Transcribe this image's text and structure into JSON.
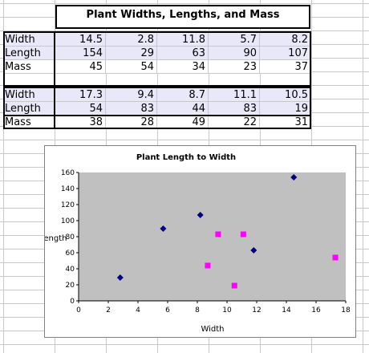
{
  "table": {
    "title": "Plant Widths, Lengths, and Mass",
    "group1": [
      {
        "label": "Width",
        "values": [
          "14.5",
          "2.8",
          "11.8",
          "5.7",
          "8.2"
        ]
      },
      {
        "label": "Length",
        "values": [
          "154",
          "29",
          "63",
          "90",
          "107"
        ]
      },
      {
        "label": "Mass",
        "values": [
          "45",
          "54",
          "34",
          "23",
          "37"
        ]
      }
    ],
    "group2": [
      {
        "label": "Width",
        "values": [
          "17.3",
          "9.4",
          "8.7",
          "11.1",
          "10.5"
        ]
      },
      {
        "label": "Length",
        "values": [
          "54",
          "83",
          "44",
          "83",
          "19"
        ]
      },
      {
        "label": "Mass",
        "values": [
          "38",
          "28",
          "49",
          "22",
          "31"
        ]
      }
    ]
  },
  "chart_data": {
    "type": "scatter",
    "title": "Plant Length to Width",
    "xlabel": "Width",
    "ylabel": "Length",
    "xlim": [
      0,
      18
    ],
    "ylim": [
      0,
      160
    ],
    "xticks": [
      0,
      2,
      4,
      6,
      8,
      10,
      12,
      14,
      16,
      18
    ],
    "yticks": [
      0,
      20,
      40,
      60,
      80,
      100,
      120,
      140,
      160
    ],
    "grid": false,
    "series": [
      {
        "marker": "diamond",
        "color": "#000080",
        "points": [
          [
            14.5,
            154
          ],
          [
            2.8,
            29
          ],
          [
            11.8,
            63
          ],
          [
            5.7,
            90
          ],
          [
            8.2,
            107
          ]
        ]
      },
      {
        "marker": "square",
        "color": "#ff00ff",
        "points": [
          [
            17.3,
            54
          ],
          [
            9.4,
            83
          ],
          [
            8.7,
            44
          ],
          [
            11.1,
            83
          ],
          [
            10.5,
            19
          ]
        ]
      }
    ],
    "plot_background": "#c0c0c0"
  }
}
